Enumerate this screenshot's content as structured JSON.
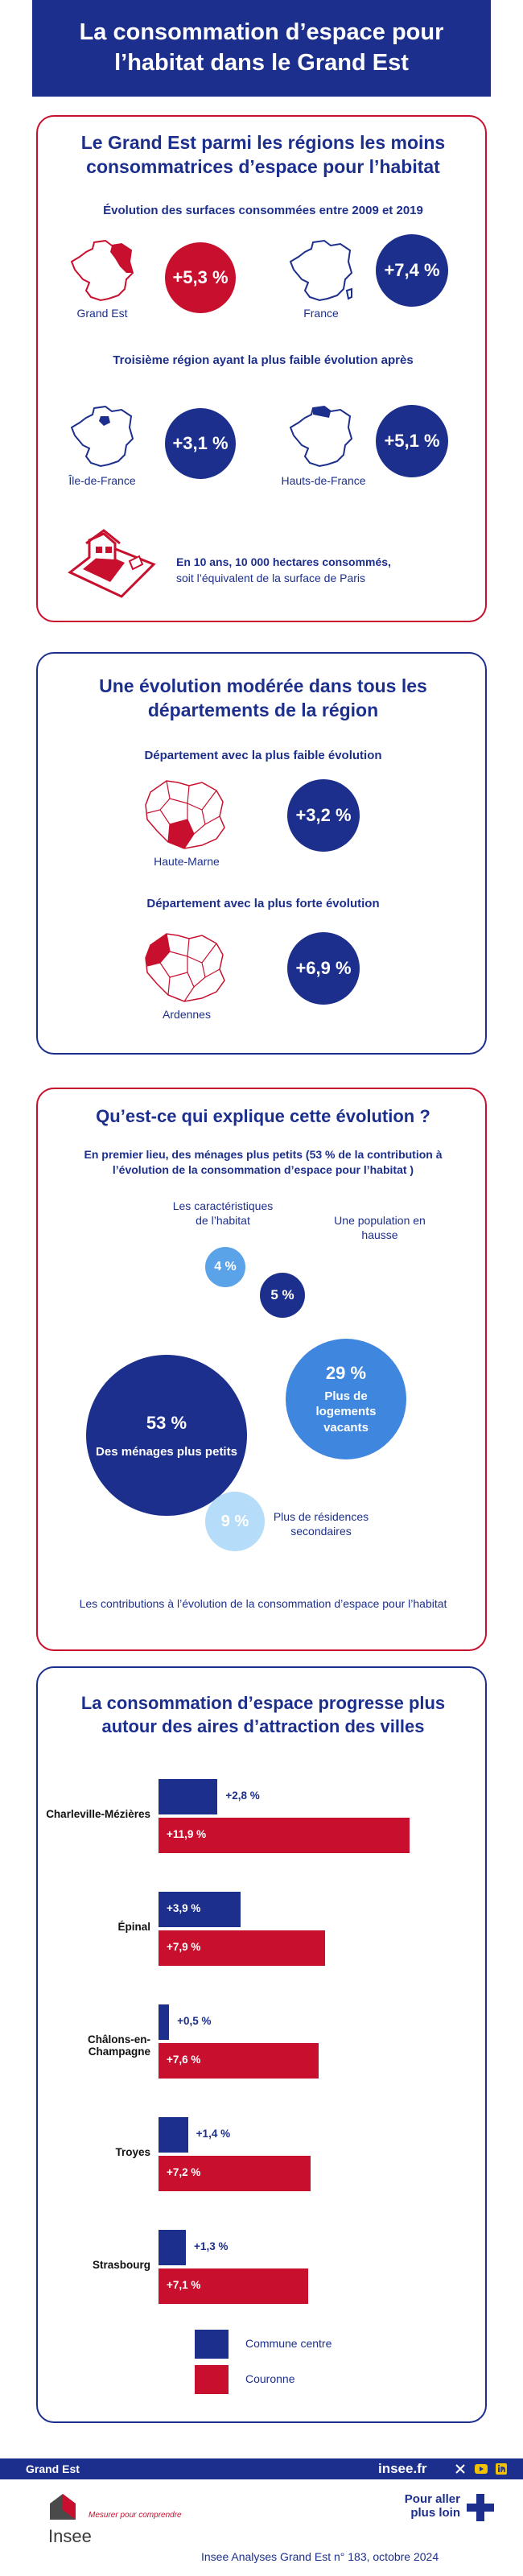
{
  "header": {
    "title": "La consommation d’espace pour l’habitat dans le Grand Est"
  },
  "section1": {
    "title": "Le Grand Est parmi les régions les moins consommatrices d’espace pour l’habitat",
    "subtitle": "Évolution des surfaces consommées entre 2009 et 2019",
    "grand_est": {
      "label": "Grand Est",
      "value": "+5,3 %"
    },
    "france": {
      "label": "France",
      "value": "+7,4 %"
    },
    "subtitle2": "Troisième région ayant la plus faible évolution après",
    "idf": {
      "label": "Île-de-France",
      "value": "+3,1 %"
    },
    "hdf": {
      "label": "Hauts-de-France",
      "value": "+5,1 %"
    },
    "note_bold": "En 10 ans, 10 000 hectares consommés,",
    "note_rest": "soit l’équivalent de la surface de Paris",
    "icon": "house-plot-icon"
  },
  "section2": {
    "title": "Une évolution modérée dans tous les départements de la région",
    "low_heading": "Département avec la plus faible évolution",
    "low": {
      "label": "Haute-Marne",
      "value": "+3,2 %"
    },
    "high_heading": "Département avec la plus forte évolution",
    "high": {
      "label": "Ardennes",
      "value": "+6,9 %"
    }
  },
  "section3": {
    "title": "Qu’est-ce qui explique cette évolution ?",
    "intro": "En premier lieu, des ménages plus petits (53 % de la contribution à l’évolution de la consommation d’espace pour l’habitat )",
    "bubbles": [
      {
        "value": "53 %",
        "label": "Des ménages plus petits",
        "color": "#1d2f8c"
      },
      {
        "value": "29 %",
        "label": "Plus de logements vacants",
        "color": "#3f86df"
      },
      {
        "value": "9 %",
        "label": "Plus de résidences secondaires",
        "color": "#b5dcf8"
      },
      {
        "value": "5 %",
        "label": "Une population en hausse",
        "color": "#1d2f8c"
      },
      {
        "value": "4 %",
        "label": "Les caractéristiques de l’habitat",
        "color": "#5aa3e8"
      }
    ],
    "caption": "Les contributions à l’évolution de la consommation d’espace pour l’habitat"
  },
  "section4": {
    "title": "La consommation d’espace progresse plus autour des aires d’attraction des villes",
    "cities": [
      {
        "name": "Charleville-Mézières",
        "centre": "+2,8 %",
        "couronne": "+11,9 %"
      },
      {
        "name": "Épinal",
        "centre": "+3,9 %",
        "couronne": "+7,9 %"
      },
      {
        "name": "Châlons-en-Champagne",
        "centre": "+0,5 %",
        "couronne": "+7,6 %"
      },
      {
        "name": "Troyes",
        "centre": "+1,4 %",
        "couronne": "+7,2 %"
      },
      {
        "name": "Strasbourg",
        "centre": "+1,3 %",
        "couronne": "+7,1 %"
      }
    ],
    "legend": {
      "centre": "Commune centre",
      "couronne": "Couronne"
    },
    "colors": {
      "centre": "#1d2f8c",
      "couronne": "#c8102e"
    }
  },
  "chart_data": {
    "type": "bar",
    "title": "La consommation d’espace progresse plus autour des aires d’attraction des villes",
    "categories": [
      "Charleville-Mézières",
      "Épinal",
      "Châlons-en-Champagne",
      "Troyes",
      "Strasbourg"
    ],
    "series": [
      {
        "name": "Commune centre",
        "values": [
          2.8,
          3.9,
          0.5,
          1.4,
          1.3
        ]
      },
      {
        "name": "Couronne",
        "values": [
          11.9,
          7.9,
          7.6,
          7.2,
          7.1
        ]
      }
    ]
  },
  "footer": {
    "region": "Grand Est",
    "site": "insee.fr",
    "logo_text": "Insee",
    "tagline": "Mesurer pour comprendre",
    "more_line1": "Pour aller",
    "more_line2": "plus loin",
    "publication": "Insee Analyses Grand Est n° 183, octobre 2024",
    "social": [
      "x-icon",
      "youtube-icon",
      "linkedin-icon"
    ]
  }
}
